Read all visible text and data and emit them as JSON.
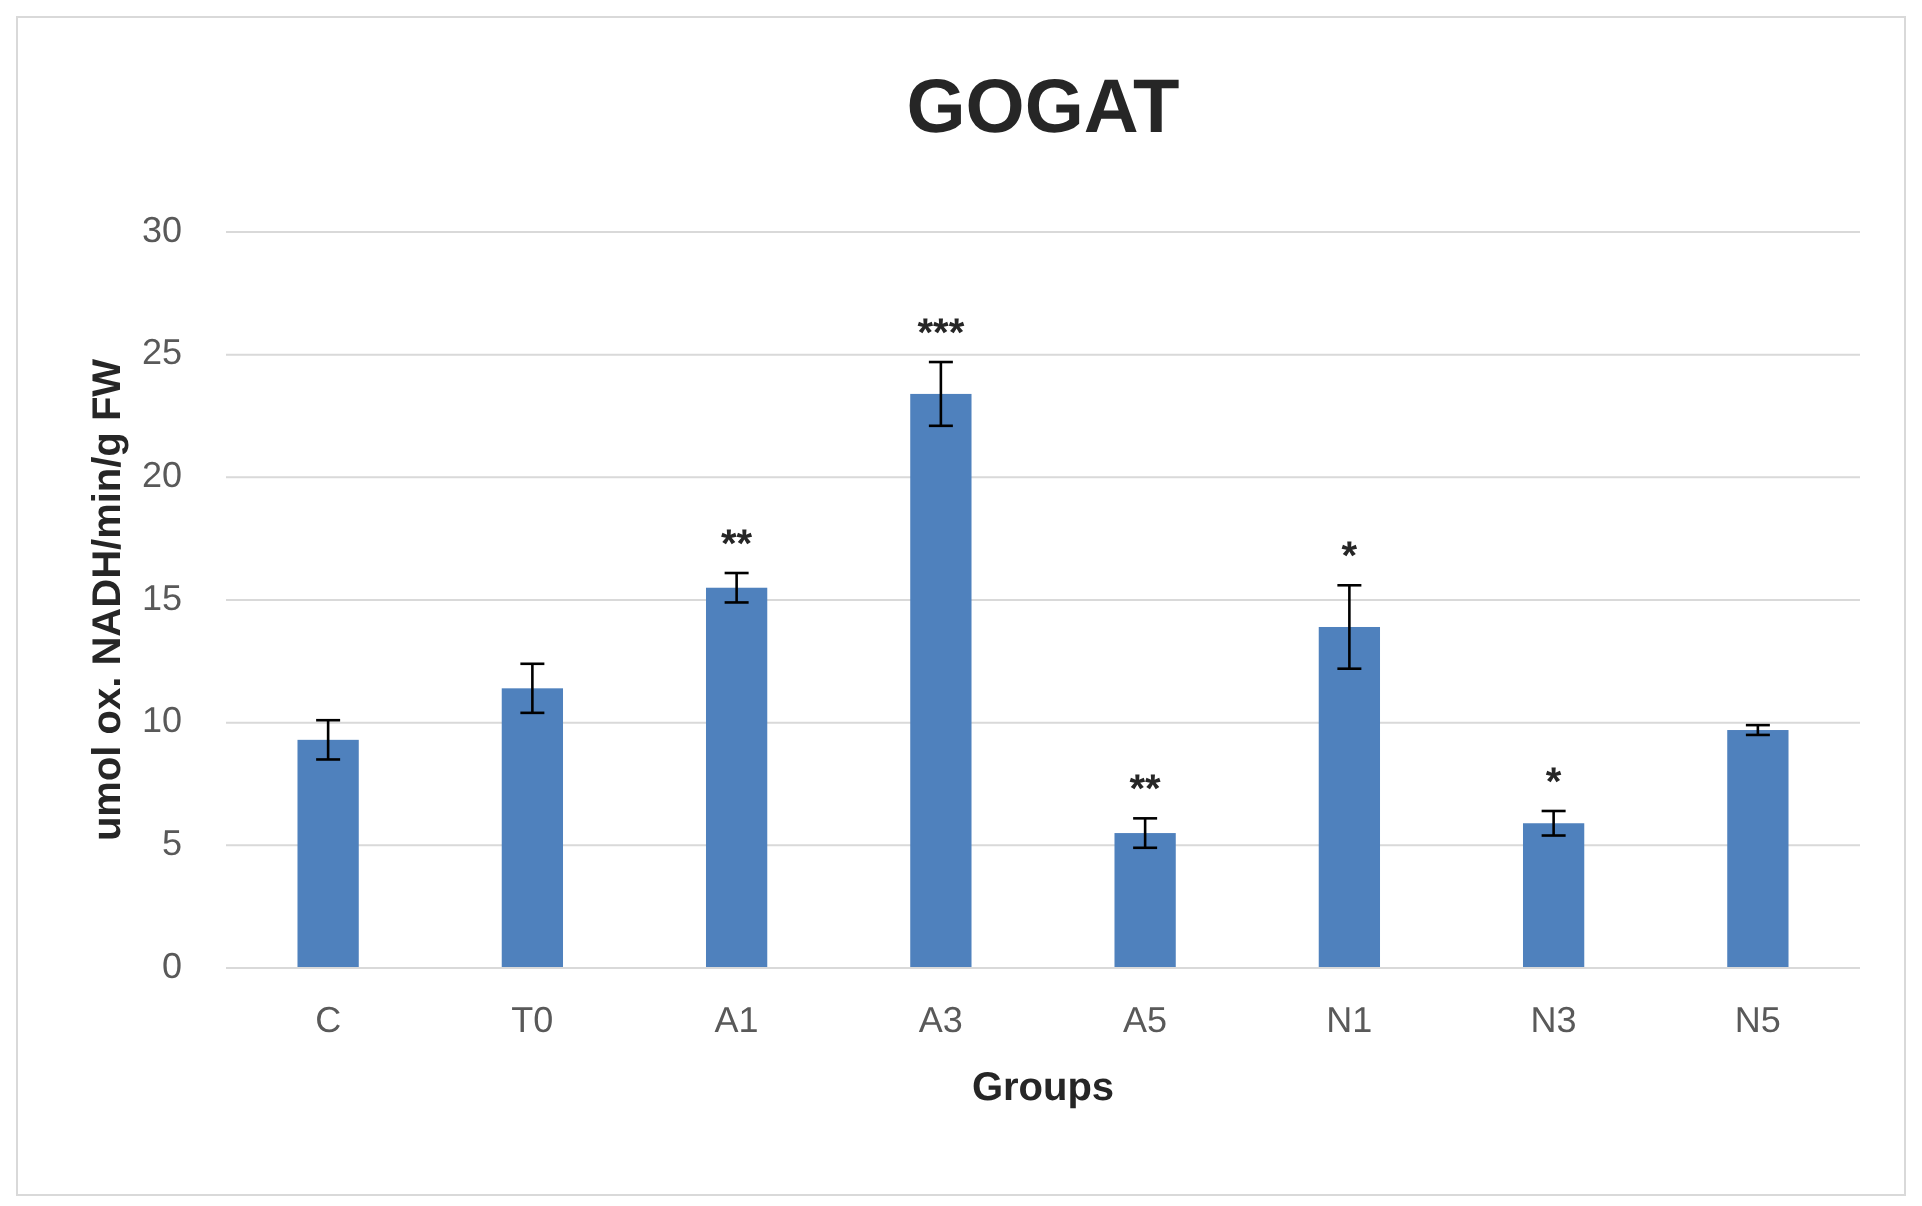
{
  "chart_data": {
    "type": "bar",
    "title": "GOGAT",
    "xlabel": "Groups",
    "ylabel": "umol ox. NADH/min/g FW",
    "categories": [
      "C",
      "T0",
      "A1",
      "A3",
      "A5",
      "N1",
      "N3",
      "N5"
    ],
    "values": [
      9.3,
      11.4,
      15.5,
      23.4,
      5.5,
      13.9,
      5.9,
      9.7
    ],
    "errors": [
      0.8,
      1.0,
      0.6,
      1.3,
      0.6,
      1.7,
      0.5,
      0.2
    ],
    "color": "#4f81bd",
    "ylim": [
      0,
      30
    ],
    "yticks": [
      0,
      5,
      10,
      15,
      20,
      25,
      30
    ],
    "grid": "y",
    "annotations": [
      {
        "text": "**",
        "x": "A1",
        "y": 16.1
      },
      {
        "text": "***",
        "x": "A3",
        "y": 24.7
      },
      {
        "text": "**",
        "x": "A5",
        "y": 6.1
      },
      {
        "text": "*",
        "x": "N1",
        "y": 15.6
      },
      {
        "text": "*",
        "x": "N3",
        "y": 6.4
      }
    ]
  }
}
